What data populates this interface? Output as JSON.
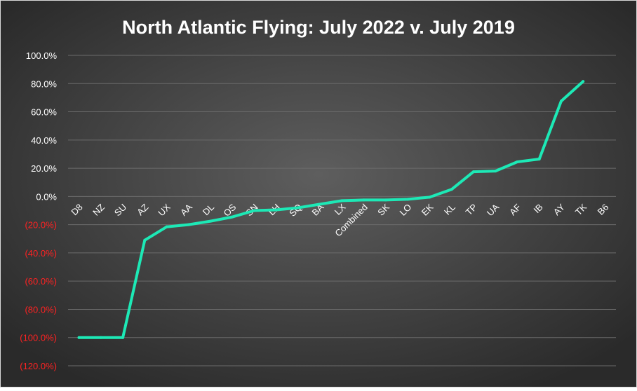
{
  "chart_data": {
    "type": "line",
    "title": "North Atlantic Flying: July 2022 v. July 2019",
    "xlabel": "",
    "ylabel": "",
    "categories": [
      "D8",
      "NZ",
      "SU",
      "AZ",
      "UX",
      "AA",
      "DL",
      "OS",
      "SN",
      "LH",
      "SQ",
      "BA",
      "LX",
      "Combined",
      "SK",
      "LO",
      "EK",
      "KL",
      "TP",
      "UA",
      "AF",
      "IB",
      "AY",
      "TK",
      "B6"
    ],
    "series": [
      {
        "values": [
          -100,
          -100,
          -100,
          -31,
          -21.5,
          -20,
          -17.5,
          -14.5,
          -10,
          -9.5,
          -8,
          -5.5,
          -3,
          -2.5,
          -2.5,
          -2,
          -0.5,
          5,
          17.5,
          18,
          24.5,
          26.5,
          67.5,
          81.5,
          null
        ]
      }
    ],
    "ylim": [
      -120,
      100
    ],
    "ytick_values": [
      100,
      80,
      60,
      40,
      20,
      0,
      -20,
      -40,
      -60,
      -80,
      -100,
      -120
    ],
    "ytick_labels": [
      "100.0%",
      "80.0%",
      "60.0%",
      "40.0%",
      "20.0%",
      "0.0%",
      "(20.0%)",
      "(40.0%)",
      "(60.0%)",
      "(80.0%)",
      "(100.0%)",
      "(120.0%)"
    ],
    "grid": true,
    "legend": "none",
    "colors": {
      "background_center": "#5e5e5e",
      "background_edge": "#2a2a2a",
      "line": "#1de9b6",
      "text": "#ffffff",
      "negative_tick": "#ff2222",
      "grid": "#6b6b6b"
    }
  }
}
